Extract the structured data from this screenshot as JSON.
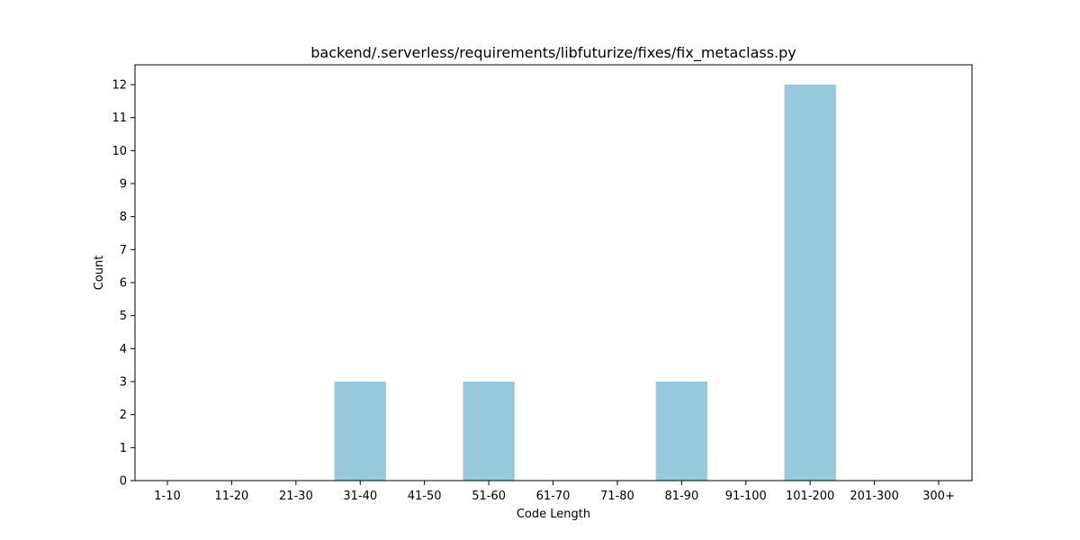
{
  "chart_data": {
    "type": "bar",
    "title": "backend/.serverless/requirements/libfuturize/fixes/fix_metaclass.py",
    "xlabel": "Code Length",
    "ylabel": "Count",
    "categories": [
      "1-10",
      "11-20",
      "21-30",
      "31-40",
      "41-50",
      "51-60",
      "61-70",
      "71-80",
      "81-90",
      "91-100",
      "101-200",
      "201-300",
      "300+"
    ],
    "values": [
      0,
      0,
      0,
      3,
      0,
      3,
      0,
      0,
      3,
      0,
      12,
      0,
      0
    ],
    "ylim": [
      0,
      12.6
    ],
    "yticks": [
      0,
      1,
      2,
      3,
      4,
      5,
      6,
      7,
      8,
      9,
      10,
      11,
      12
    ],
    "bar_color": "#96c9dc",
    "grid": false,
    "legend": "none"
  }
}
